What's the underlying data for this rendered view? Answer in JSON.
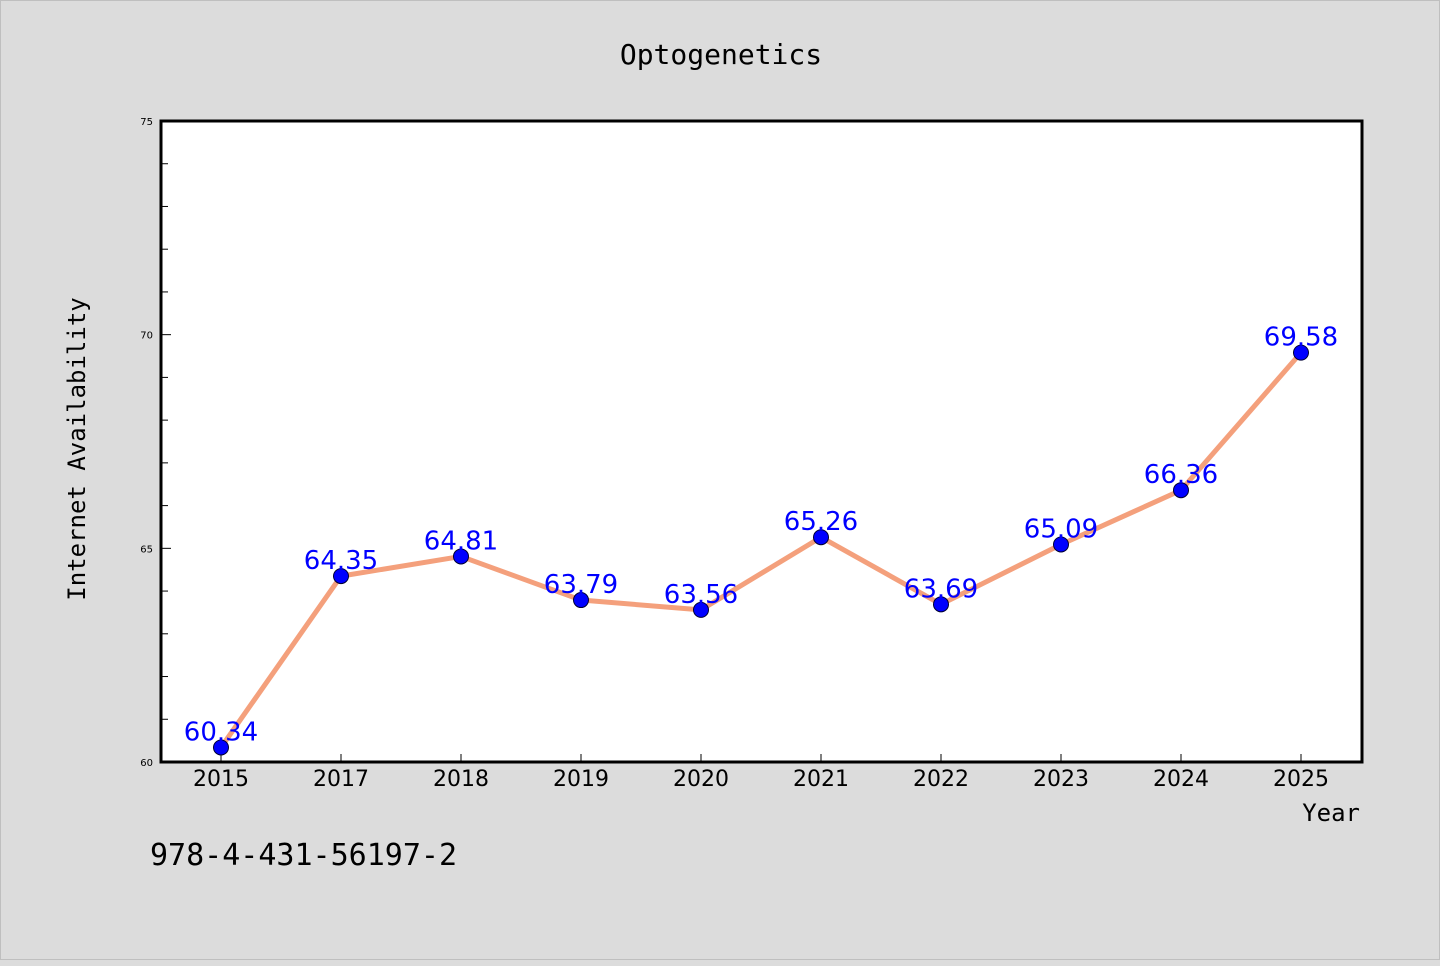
{
  "chart_data": {
    "type": "line",
    "title": "Optogenetics",
    "xlabel": "Year",
    "ylabel": "Internet Availability",
    "categories": [
      "2015",
      "2017",
      "2018",
      "2019",
      "2020",
      "2021",
      "2022",
      "2023",
      "2024",
      "2025"
    ],
    "values": [
      60.34,
      64.35,
      64.81,
      63.79,
      63.56,
      65.26,
      63.69,
      65.09,
      66.36,
      69.58
    ],
    "data_labels": [
      "60.34",
      "64.35",
      "64.81",
      "63.79",
      "63.56",
      "65.26",
      "63.69",
      "65.09",
      "66.36",
      "69.58"
    ],
    "ylim": [
      60,
      75
    ],
    "yticks": [
      "60",
      "65",
      "70",
      "75"
    ],
    "grid": false,
    "line_color": "#f4a07c",
    "marker_color": "#0000ff"
  },
  "footnote": "978-4-431-56197-2"
}
